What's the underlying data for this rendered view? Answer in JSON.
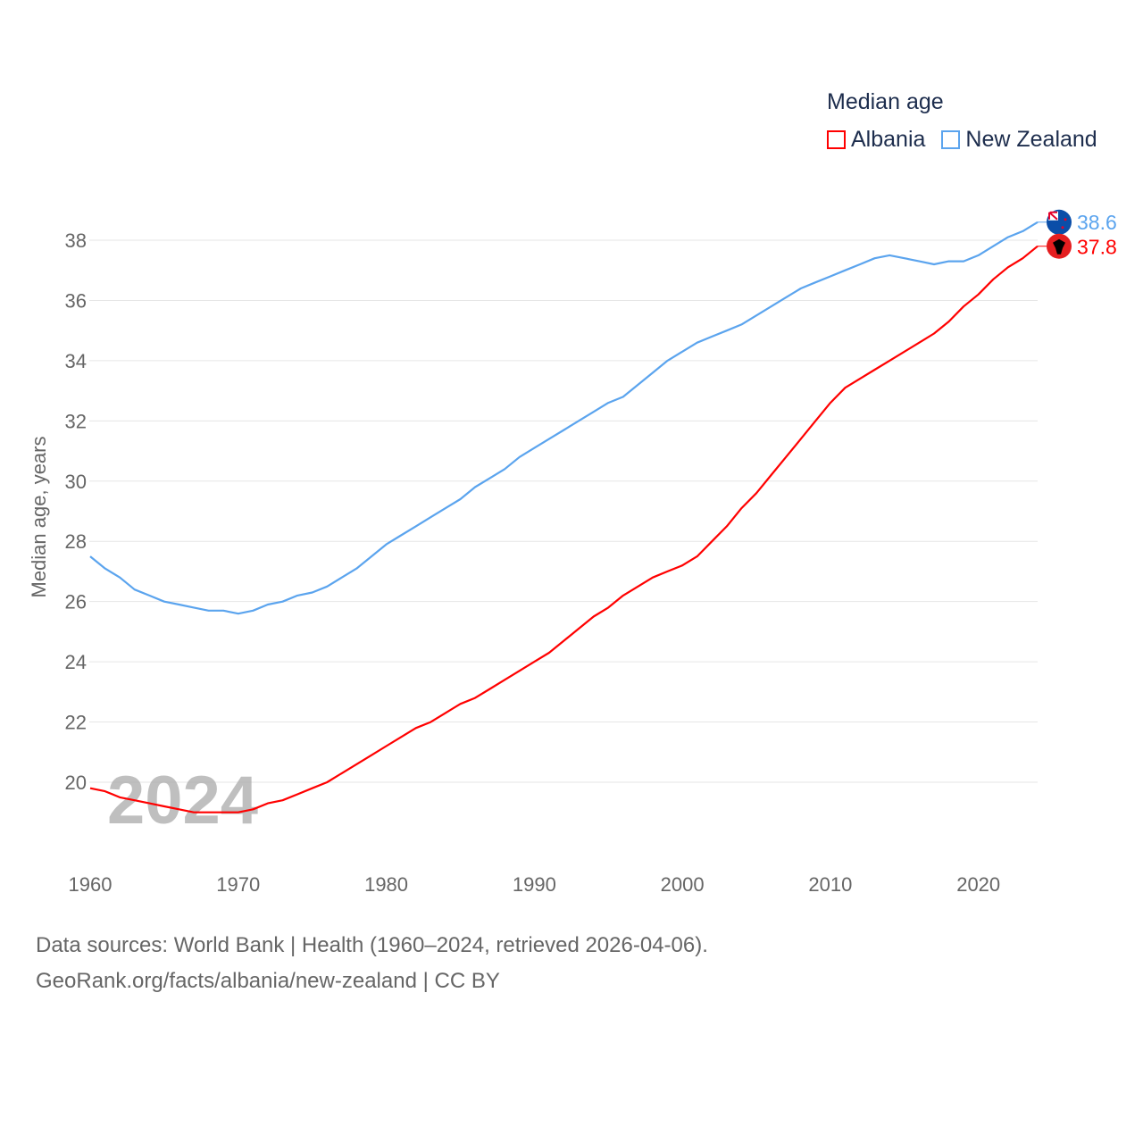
{
  "chart_data": {
    "type": "line",
    "title": "Median age",
    "ylabel": "Median age, years",
    "xlabel": "",
    "xlim": [
      1960,
      2024
    ],
    "ylim": [
      18,
      39
    ],
    "yticks": [
      20,
      22,
      24,
      26,
      28,
      30,
      32,
      34,
      36,
      38
    ],
    "xticks": [
      1960,
      1970,
      1980,
      1990,
      2000,
      2010,
      2020
    ],
    "grid": true,
    "legend_placement": "top-right",
    "year_watermark": "2024",
    "x": [
      1960,
      1961,
      1962,
      1963,
      1964,
      1965,
      1966,
      1967,
      1968,
      1969,
      1970,
      1971,
      1972,
      1973,
      1974,
      1975,
      1976,
      1977,
      1978,
      1979,
      1980,
      1981,
      1982,
      1983,
      1984,
      1985,
      1986,
      1987,
      1988,
      1989,
      1990,
      1991,
      1992,
      1993,
      1994,
      1995,
      1996,
      1997,
      1998,
      1999,
      2000,
      2001,
      2002,
      2003,
      2004,
      2005,
      2006,
      2007,
      2008,
      2009,
      2010,
      2011,
      2012,
      2013,
      2014,
      2015,
      2016,
      2017,
      2018,
      2019,
      2020,
      2021,
      2022,
      2023,
      2024
    ],
    "series": [
      {
        "name": "Albania",
        "color": "#ff0000",
        "end_label": "37.8",
        "values": [
          19.8,
          19.7,
          19.5,
          19.4,
          19.3,
          19.2,
          19.1,
          19.0,
          19.0,
          19.0,
          19.0,
          19.1,
          19.3,
          19.4,
          19.6,
          19.8,
          20.0,
          20.3,
          20.6,
          20.9,
          21.2,
          21.5,
          21.8,
          22.0,
          22.3,
          22.6,
          22.8,
          23.1,
          23.4,
          23.7,
          24.0,
          24.3,
          24.7,
          25.1,
          25.5,
          25.8,
          26.2,
          26.5,
          26.8,
          27.0,
          27.2,
          27.5,
          28.0,
          28.5,
          29.1,
          29.6,
          30.2,
          30.8,
          31.4,
          32.0,
          32.6,
          33.1,
          33.4,
          33.7,
          34.0,
          34.3,
          34.6,
          34.9,
          35.3,
          35.8,
          36.2,
          36.7,
          37.1,
          37.4,
          37.8
        ]
      },
      {
        "name": "New Zealand",
        "color": "#5ba4ee",
        "end_label": "38.6",
        "values": [
          27.5,
          27.1,
          26.8,
          26.4,
          26.2,
          26.0,
          25.9,
          25.8,
          25.7,
          25.7,
          25.6,
          25.7,
          25.9,
          26.0,
          26.2,
          26.3,
          26.5,
          26.8,
          27.1,
          27.5,
          27.9,
          28.2,
          28.5,
          28.8,
          29.1,
          29.4,
          29.8,
          30.1,
          30.4,
          30.8,
          31.1,
          31.4,
          31.7,
          32.0,
          32.3,
          32.6,
          32.8,
          33.2,
          33.6,
          34.0,
          34.3,
          34.6,
          34.8,
          35.0,
          35.2,
          35.5,
          35.8,
          36.1,
          36.4,
          36.6,
          36.8,
          37.0,
          37.2,
          37.4,
          37.5,
          37.4,
          37.3,
          37.2,
          37.3,
          37.3,
          37.5,
          37.8,
          38.1,
          38.3,
          38.6
        ]
      }
    ]
  },
  "footer": {
    "line1": "Data sources: World Bank | Health (1960–2024, retrieved 2026-04-06).",
    "line2": "GeoRank.org/facts/albania/new-zealand | CC BY"
  }
}
